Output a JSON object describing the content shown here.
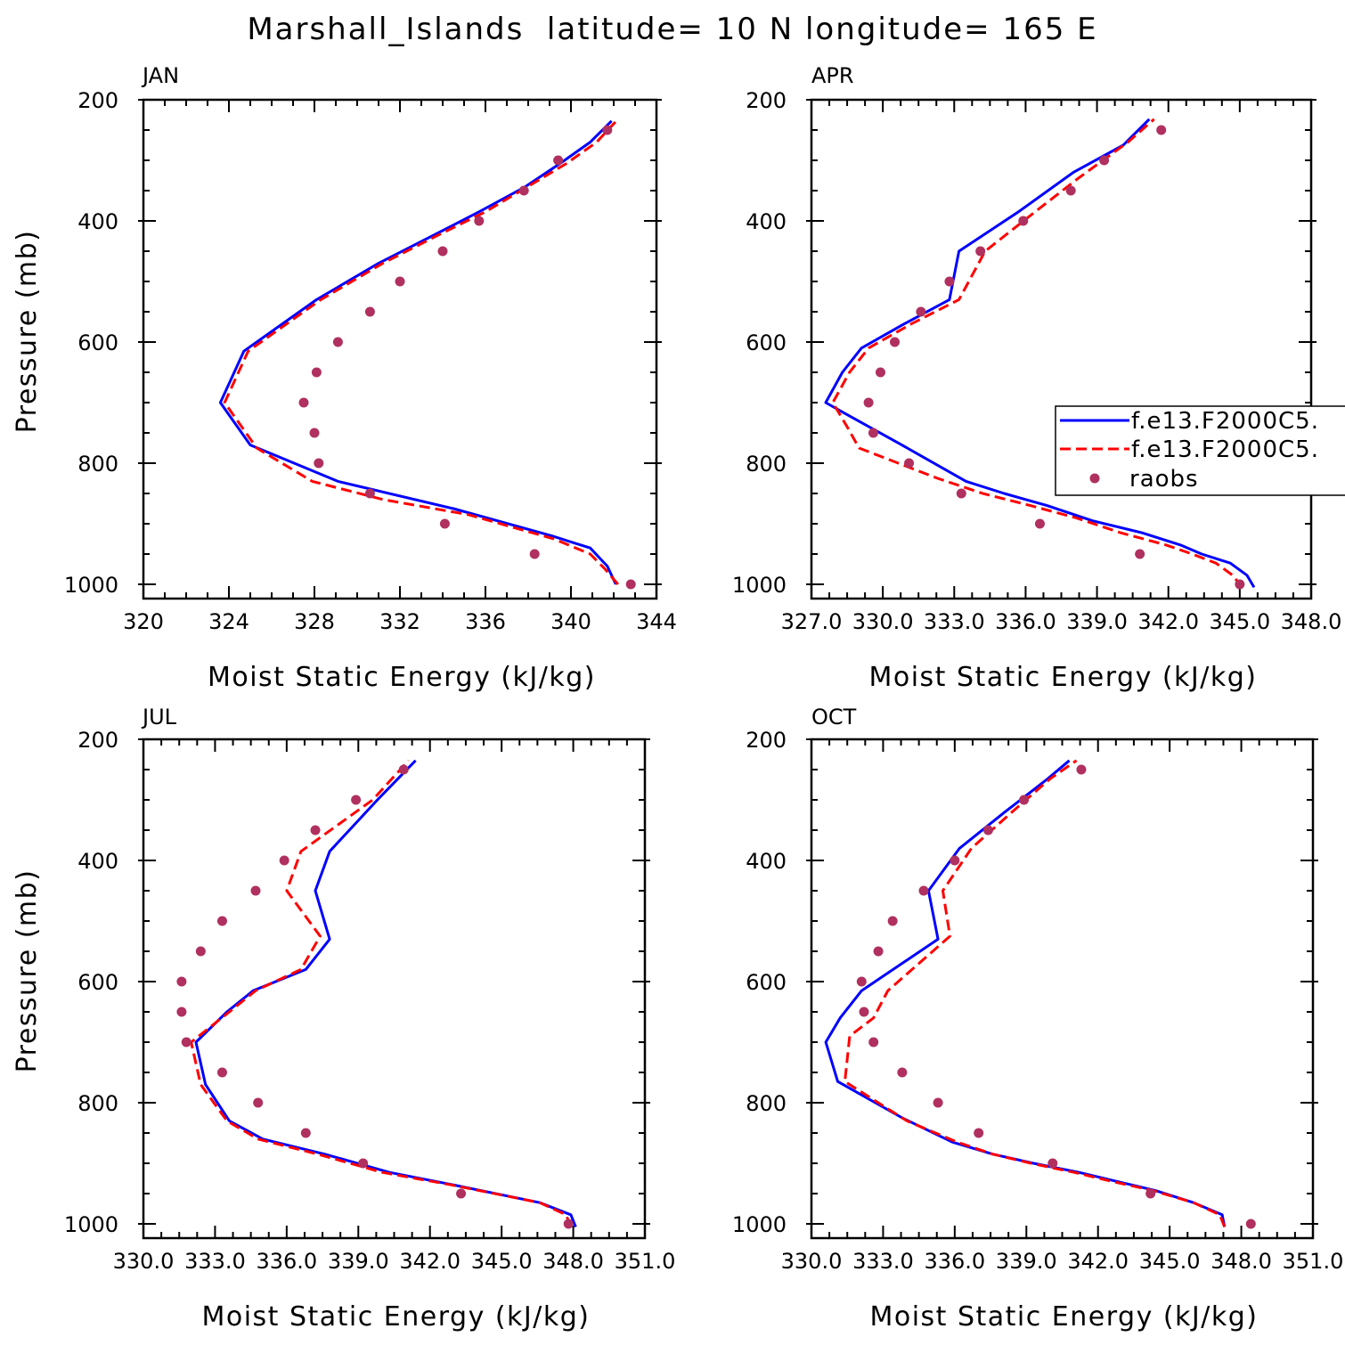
{
  "figure": {
    "title": "Marshall_Islands  latitude= 10 N longitude= 165 E"
  },
  "legend": {
    "panel": 1,
    "entries": [
      "f.e13.F2000C5.",
      "f.e13.F2000C5.",
      "raobs"
    ]
  },
  "colors": {
    "series_model_a": "#0000ff",
    "series_model_b": "#ff0000",
    "series_raobs": "#b03060",
    "axes": "#000000"
  },
  "chart_data": [
    {
      "type": "line",
      "panel_title": "JAN",
      "xlabel": "Moist Static Energy (kJ/kg)",
      "ylabel": "Pressure (mb)",
      "xlim": [
        320,
        344
      ],
      "ylim": [
        1000,
        200
      ],
      "xticks": [
        320,
        324,
        328,
        332,
        336,
        340,
        344
      ],
      "xtick_labels": [
        "320",
        "324",
        "328",
        "332",
        "336",
        "340",
        "344"
      ],
      "yticks": [
        200,
        400,
        600,
        800,
        1000
      ],
      "ytick_labels": [
        "200",
        "400",
        "600",
        "800",
        "1000"
      ],
      "series": [
        {
          "legend_index": 0,
          "style": "solid",
          "points": [
            [
              342.1,
              1000
            ],
            [
              341.7,
              970
            ],
            [
              340.9,
              940
            ],
            [
              339.1,
              920
            ],
            [
              334.5,
              875
            ],
            [
              329.1,
              830
            ],
            [
              325.0,
              770
            ],
            [
              323.6,
              700
            ],
            [
              324.7,
              615
            ],
            [
              328.1,
              530
            ],
            [
              331.0,
              470
            ],
            [
              333.5,
              425
            ],
            [
              335.7,
              385
            ],
            [
              337.8,
              345
            ],
            [
              339.5,
              305
            ],
            [
              340.9,
              270
            ],
            [
              341.9,
              235
            ]
          ]
        },
        {
          "legend_index": 1,
          "style": "dashed",
          "points": [
            [
              342.2,
              1000
            ],
            [
              341.6,
              975
            ],
            [
              340.9,
              950
            ],
            [
              339.2,
              925
            ],
            [
              335.2,
              885
            ],
            [
              331.2,
              860
            ],
            [
              327.9,
              830
            ],
            [
              325.3,
              775
            ],
            [
              323.8,
              700
            ],
            [
              324.9,
              615
            ],
            [
              328.3,
              530
            ],
            [
              331.2,
              470
            ],
            [
              333.7,
              425
            ],
            [
              336.0,
              385
            ],
            [
              337.9,
              345
            ],
            [
              339.8,
              305
            ],
            [
              341.2,
              270
            ],
            [
              342.2,
              232
            ]
          ]
        },
        {
          "legend_index": 2,
          "style": "dots",
          "points": [
            [
              342.8,
              1000
            ],
            [
              338.3,
              950
            ],
            [
              334.1,
              900
            ],
            [
              330.6,
              850
            ],
            [
              328.2,
              800
            ],
            [
              328.0,
              750
            ],
            [
              327.5,
              700
            ],
            [
              328.1,
              650
            ],
            [
              329.1,
              600
            ],
            [
              330.6,
              550
            ],
            [
              332.0,
              500
            ],
            [
              334.0,
              450
            ],
            [
              335.7,
              400
            ],
            [
              337.8,
              350
            ],
            [
              339.4,
              300
            ],
            [
              341.7,
              250
            ]
          ]
        }
      ]
    },
    {
      "type": "line",
      "panel_title": "APR",
      "xlabel": "Moist Static Energy (kJ/kg)",
      "ylabel": "",
      "xlim": [
        327.0,
        348.0
      ],
      "ylim": [
        1000,
        200
      ],
      "xticks": [
        327,
        330,
        333,
        336,
        339,
        342,
        345,
        348
      ],
      "xtick_labels": [
        "327.0",
        "330.0",
        "333.0",
        "336.0",
        "339.0",
        "342.0",
        "345.0",
        "348.0"
      ],
      "yticks": [
        200,
        400,
        600,
        800,
        1000
      ],
      "ytick_labels": [
        "200",
        "400",
        "600",
        "800",
        "1000"
      ],
      "series": [
        {
          "legend_index": 0,
          "style": "solid",
          "points": [
            [
              345.6,
              1005
            ],
            [
              345.3,
              985
            ],
            [
              344.6,
              965
            ],
            [
              343.4,
              950
            ],
            [
              342.5,
              935
            ],
            [
              340.9,
              915
            ],
            [
              338.8,
              895
            ],
            [
              336.9,
              870
            ],
            [
              335.1,
              850
            ],
            [
              333.5,
              830
            ],
            [
              330.8,
              770
            ],
            [
              328.5,
              720
            ],
            [
              327.6,
              700
            ],
            [
              328.3,
              650
            ],
            [
              329.1,
              610
            ],
            [
              330.9,
              570
            ],
            [
              332.8,
              530
            ],
            [
              333.2,
              450
            ],
            [
              335.7,
              385
            ],
            [
              338.0,
              320
            ],
            [
              340.1,
              275
            ],
            [
              341.2,
              232
            ]
          ]
        },
        {
          "legend_index": 1,
          "style": "dashed",
          "points": [
            [
              345.1,
              1005
            ],
            [
              344.7,
              985
            ],
            [
              344.0,
              965
            ],
            [
              343.0,
              950
            ],
            [
              341.9,
              935
            ],
            [
              340.0,
              915
            ],
            [
              338.1,
              890
            ],
            [
              336.2,
              870
            ],
            [
              334.2,
              850
            ],
            [
              332.3,
              825
            ],
            [
              329.0,
              775
            ],
            [
              328.5,
              740
            ],
            [
              327.9,
              700
            ],
            [
              328.6,
              650
            ],
            [
              329.4,
              610
            ],
            [
              331.2,
              570
            ],
            [
              333.2,
              530
            ],
            [
              334.3,
              450
            ],
            [
              336.4,
              385
            ],
            [
              338.2,
              330
            ],
            [
              340.3,
              270
            ],
            [
              341.4,
              232
            ]
          ]
        },
        {
          "legend_index": 2,
          "style": "dots",
          "points": [
            [
              345.0,
              1000
            ],
            [
              340.8,
              950
            ],
            [
              336.6,
              900
            ],
            [
              333.3,
              850
            ],
            [
              331.1,
              800
            ],
            [
              329.6,
              750
            ],
            [
              329.4,
              700
            ],
            [
              329.9,
              650
            ],
            [
              330.5,
              600
            ],
            [
              331.6,
              550
            ],
            [
              332.8,
              500
            ],
            [
              334.1,
              450
            ],
            [
              335.9,
              400
            ],
            [
              337.9,
              350
            ],
            [
              339.3,
              300
            ],
            [
              341.7,
              250
            ]
          ]
        }
      ]
    },
    {
      "type": "line",
      "panel_title": "JUL",
      "xlabel": "Moist Static Energy (kJ/kg)",
      "ylabel": "Pressure (mb)",
      "xlim": [
        330.0,
        351.0
      ],
      "ylim": [
        1000,
        200
      ],
      "xticks": [
        330,
        333,
        336,
        339,
        342,
        345,
        348,
        351
      ],
      "xtick_labels": [
        "330.0",
        "333.0",
        "336.0",
        "339.0",
        "342.0",
        "345.0",
        "348.0",
        "351.0"
      ],
      "yticks": [
        200,
        400,
        600,
        800,
        1000
      ],
      "ytick_labels": [
        "200",
        "400",
        "600",
        "800",
        "1000"
      ],
      "series": [
        {
          "legend_index": 0,
          "style": "solid",
          "points": [
            [
              348.1,
              1005
            ],
            [
              347.9,
              985
            ],
            [
              346.6,
              965
            ],
            [
              342.9,
              935
            ],
            [
              340.3,
              915
            ],
            [
              337.6,
              885
            ],
            [
              335.0,
              860
            ],
            [
              333.6,
              830
            ],
            [
              332.6,
              770
            ],
            [
              332.2,
              700
            ],
            [
              333.5,
              650
            ],
            [
              334.6,
              615
            ],
            [
              336.8,
              580
            ],
            [
              337.8,
              530
            ],
            [
              337.2,
              450
            ],
            [
              337.8,
              385
            ],
            [
              339.8,
              300
            ],
            [
              341.4,
              235
            ]
          ]
        },
        {
          "legend_index": 1,
          "style": "dashed",
          "points": [
            [
              347.9,
              1005
            ],
            [
              347.7,
              985
            ],
            [
              346.6,
              965
            ],
            [
              342.8,
              935
            ],
            [
              340.0,
              915
            ],
            [
              337.3,
              885
            ],
            [
              334.8,
              860
            ],
            [
              333.5,
              830
            ],
            [
              332.4,
              770
            ],
            [
              332.0,
              700
            ],
            [
              333.6,
              650
            ],
            [
              334.7,
              615
            ],
            [
              336.6,
              580
            ],
            [
              337.4,
              525
            ],
            [
              336.0,
              450
            ],
            [
              336.6,
              385
            ],
            [
              339.6,
              300
            ],
            [
              341.1,
              235
            ]
          ]
        },
        {
          "legend_index": 2,
          "style": "dots",
          "points": [
            [
              347.8,
              1000
            ],
            [
              343.3,
              950
            ],
            [
              339.2,
              900
            ],
            [
              336.8,
              850
            ],
            [
              334.8,
              800
            ],
            [
              333.3,
              750
            ],
            [
              331.8,
              700
            ],
            [
              331.6,
              650
            ],
            [
              331.6,
              600
            ],
            [
              332.4,
              550
            ],
            [
              333.3,
              500
            ],
            [
              334.7,
              450
            ],
            [
              335.9,
              400
            ],
            [
              337.2,
              350
            ],
            [
              338.9,
              300
            ],
            [
              340.9,
              250
            ]
          ]
        }
      ]
    },
    {
      "type": "line",
      "panel_title": "OCT",
      "xlabel": "Moist Static Energy (kJ/kg)",
      "ylabel": "",
      "xlim": [
        330.0,
        351.0
      ],
      "ylim": [
        1000,
        200
      ],
      "xticks": [
        330,
        333,
        336,
        339,
        342,
        345,
        348,
        351
      ],
      "xtick_labels": [
        "330.0",
        "333.0",
        "336.0",
        "339.0",
        "342.0",
        "345.0",
        "348.0",
        "351.0"
      ],
      "yticks": [
        200,
        400,
        600,
        800,
        1000
      ],
      "ytick_labels": [
        "200",
        "400",
        "600",
        "800",
        "1000"
      ],
      "series": [
        {
          "legend_index": 0,
          "style": "solid",
          "points": [
            [
              347.3,
              1005
            ],
            [
              347.2,
              985
            ],
            [
              346.0,
              965
            ],
            [
              344.4,
              945
            ],
            [
              342.8,
              930
            ],
            [
              341.2,
              915
            ],
            [
              339.3,
              900
            ],
            [
              337.6,
              885
            ],
            [
              335.9,
              865
            ],
            [
              333.8,
              825
            ],
            [
              331.1,
              765
            ],
            [
              330.6,
              700
            ],
            [
              331.2,
              660
            ],
            [
              332.1,
              615
            ],
            [
              335.3,
              530
            ],
            [
              334.9,
              450
            ],
            [
              336.2,
              380
            ],
            [
              338.1,
              320
            ],
            [
              339.9,
              265
            ],
            [
              340.8,
              235
            ]
          ]
        },
        {
          "legend_index": 1,
          "style": "dashed",
          "points": [
            [
              347.3,
              1005
            ],
            [
              347.1,
              985
            ],
            [
              346.0,
              965
            ],
            [
              344.3,
              945
            ],
            [
              342.6,
              930
            ],
            [
              341.0,
              915
            ],
            [
              339.2,
              900
            ],
            [
              337.6,
              885
            ],
            [
              336.1,
              865
            ],
            [
              334.0,
              830
            ],
            [
              331.4,
              765
            ],
            [
              331.6,
              690
            ],
            [
              332.6,
              660
            ],
            [
              333.2,
              615
            ],
            [
              335.8,
              525
            ],
            [
              335.5,
              450
            ],
            [
              336.7,
              380
            ],
            [
              338.4,
              320
            ],
            [
              340.0,
              265
            ],
            [
              341.1,
              235
            ]
          ]
        },
        {
          "legend_index": 2,
          "style": "dots",
          "points": [
            [
              348.4,
              1000
            ],
            [
              344.2,
              950
            ],
            [
              340.1,
              900
            ],
            [
              337.0,
              850
            ],
            [
              335.3,
              800
            ],
            [
              333.8,
              750
            ],
            [
              332.6,
              700
            ],
            [
              332.2,
              650
            ],
            [
              332.1,
              600
            ],
            [
              332.8,
              550
            ],
            [
              333.4,
              500
            ],
            [
              334.7,
              450
            ],
            [
              336.0,
              400
            ],
            [
              337.4,
              350
            ],
            [
              338.9,
              300
            ],
            [
              341.3,
              250
            ]
          ]
        }
      ]
    }
  ]
}
